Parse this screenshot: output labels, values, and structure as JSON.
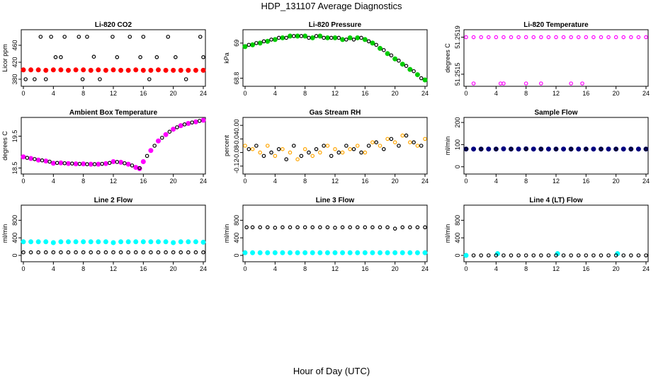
{
  "figure": {
    "title": "HDP_131107  Average Diagnostics",
    "xlabel": "Hour of Day (UTC)"
  },
  "colors": {
    "black": "#000000",
    "red": "#ff0000",
    "magenta": "#ff00ff",
    "green": "#00cc00",
    "orange": "#ffa500",
    "navy": "#000080",
    "cyan": "#00ffff"
  },
  "chart_data": [
    {
      "type": "scatter",
      "title": "Li-820 CO2",
      "ylabel": "Licor ppm",
      "xlim": [
        0,
        24
      ],
      "ylim": [
        370,
        490
      ],
      "xticks": [
        0,
        4,
        8,
        12,
        16,
        20,
        24
      ],
      "yticks": [
        380,
        420,
        460
      ],
      "series": [
        {
          "color": "#ff0000",
          "marker": "filled",
          "x": [
            0,
            1,
            2,
            3,
            4,
            5,
            6,
            7,
            8,
            9,
            10,
            11,
            12,
            13,
            14,
            15,
            16,
            17,
            18,
            19,
            20,
            21,
            22,
            23,
            24
          ],
          "y": [
            402,
            402,
            402,
            401,
            402,
            402,
            401,
            402,
            402,
            401,
            402,
            401,
            402,
            401,
            401,
            402,
            401,
            401,
            402,
            401,
            401,
            401,
            401,
            401,
            401
          ]
        },
        {
          "color": "#000000",
          "marker": "open",
          "x": [
            0.3,
            1.5,
            2.3,
            3.0,
            3.7,
            4.3,
            5.0,
            5.5,
            7.4,
            7.9,
            8.5,
            9.4,
            10.2,
            11.9,
            12.5,
            14.2,
            15.6,
            16.0,
            16.8,
            17.8,
            19.3,
            20.3,
            21.7,
            23.6,
            24.0
          ],
          "y": [
            380,
            380,
            480,
            380,
            480,
            432,
            432,
            480,
            480,
            380,
            480,
            433,
            380,
            480,
            432,
            480,
            432,
            480,
            380,
            432,
            480,
            432,
            380,
            480,
            432
          ]
        }
      ]
    },
    {
      "type": "scatter",
      "title": "Li-820 Pressure",
      "ylabel": "kPa",
      "xlim": [
        0,
        24
      ],
      "ylim": [
        68.77,
        69.06
      ],
      "xticks": [
        0,
        4,
        8,
        12,
        16,
        20,
        24
      ],
      "yticks": [
        68.8,
        69.0
      ],
      "series": [
        {
          "color": "#00cc00",
          "marker": "filled",
          "x": [
            0,
            1,
            2,
            3,
            4,
            5,
            6,
            7,
            8,
            9,
            10,
            11,
            12,
            13,
            14,
            15,
            16,
            17,
            18,
            19,
            20,
            21,
            22,
            23,
            24
          ],
          "y": [
            68.98,
            68.99,
            69.0,
            69.01,
            69.02,
            69.03,
            69.04,
            69.04,
            69.04,
            69.03,
            69.04,
            69.03,
            69.03,
            69.02,
            69.03,
            69.03,
            69.02,
            69.0,
            68.97,
            68.94,
            68.91,
            68.88,
            68.85,
            68.82,
            68.79
          ]
        },
        {
          "color": "#000000",
          "marker": "open",
          "x": [
            0.5,
            1.5,
            2.5,
            3.5,
            4.5,
            5.5,
            6.5,
            7.5,
            8.5,
            9.5,
            10.5,
            11.5,
            12.5,
            13.5,
            14.5,
            15.5,
            16.5,
            17.5,
            18.5,
            19.5,
            20.5,
            21.5,
            22.5,
            23.5
          ],
          "y": [
            68.99,
            69.0,
            69.01,
            69.02,
            69.03,
            69.03,
            69.04,
            69.04,
            69.03,
            69.04,
            69.03,
            69.03,
            69.03,
            69.02,
            69.02,
            69.03,
            69.01,
            68.99,
            68.96,
            68.93,
            68.9,
            68.87,
            68.84,
            68.8
          ]
        }
      ]
    },
    {
      "type": "scatter",
      "title": "Li-820 Temperature",
      "ylabel": "degrees C",
      "xlim": [
        0,
        24
      ],
      "ylim": [
        51.2514,
        51.25195
      ],
      "xticks": [
        0,
        4,
        8,
        12,
        16,
        20,
        24
      ],
      "yticks": [
        51.2515,
        51.2519
      ],
      "ytick_labels": [
        "51.2515",
        "51.2519"
      ],
      "series": [
        {
          "color": "#ff00ff",
          "marker": "open",
          "x": [
            1.0,
            4.6,
            5.0,
            8.0,
            10.0,
            14.0,
            15.5
          ],
          "y": [
            51.2514,
            51.2514,
            51.2514,
            51.2514,
            51.2514,
            51.2514,
            51.2514
          ]
        },
        {
          "color": "#ff00ff",
          "marker": "open",
          "x": [
            0,
            1,
            2,
            3,
            4,
            5,
            6,
            7,
            8,
            9,
            10,
            11,
            12,
            13,
            14,
            15,
            16,
            17,
            18,
            19,
            20,
            21,
            22,
            23,
            24
          ],
          "y": [
            51.2519,
            51.2519,
            51.2519,
            51.2519,
            51.2519,
            51.2519,
            51.2519,
            51.2519,
            51.2519,
            51.2519,
            51.2519,
            51.2519,
            51.2519,
            51.2519,
            51.2519,
            51.2519,
            51.2519,
            51.2519,
            51.2519,
            51.2519,
            51.2519,
            51.2519,
            51.2519,
            51.2519,
            51.2519
          ]
        }
      ]
    },
    {
      "type": "scatter",
      "title": "Ambient Box Temperature",
      "ylabel": "degrees C",
      "xlim": [
        0,
        24
      ],
      "ylim": [
        18.4,
        20.0
      ],
      "xticks": [
        0,
        4,
        8,
        12,
        16,
        20,
        24
      ],
      "yticks": [
        18.5,
        19.5
      ],
      "series": [
        {
          "color": "#ff00ff",
          "marker": "filled",
          "x": [
            0,
            1,
            2,
            3,
            4,
            5,
            6,
            7,
            8,
            9,
            10,
            11,
            12,
            13,
            14,
            15,
            15.5,
            16,
            17,
            18,
            19,
            20,
            21,
            22,
            23,
            24
          ],
          "y": [
            18.85,
            18.8,
            18.75,
            18.72,
            18.65,
            18.66,
            18.64,
            18.63,
            18.63,
            18.62,
            18.62,
            18.64,
            18.7,
            18.68,
            18.62,
            18.52,
            18.48,
            18.7,
            19.05,
            19.35,
            19.55,
            19.72,
            19.83,
            19.9,
            19.95,
            20.0
          ]
        },
        {
          "color": "#000000",
          "marker": "open",
          "x": [
            0.5,
            1.5,
            2.5,
            3.5,
            4.5,
            5.5,
            6.5,
            7.5,
            8.5,
            9.5,
            10.5,
            11.5,
            12.5,
            13.5,
            14.5,
            15.5,
            16.5,
            17.5,
            18.5,
            19.5,
            20.5,
            21.5,
            22.5,
            23.5
          ],
          "y": [
            18.82,
            18.78,
            18.74,
            18.7,
            18.66,
            18.65,
            18.64,
            18.63,
            18.62,
            18.62,
            18.63,
            18.66,
            18.69,
            18.65,
            18.58,
            18.5,
            18.88,
            19.2,
            19.45,
            19.64,
            19.78,
            19.87,
            19.93,
            19.98
          ]
        }
      ]
    },
    {
      "type": "scatter",
      "title": "Gas Stream RH",
      "ylabel": "percent",
      "xlim": [
        0,
        24
      ],
      "ylim": [
        -0.135,
        0.015
      ],
      "xticks": [
        0,
        4,
        8,
        12,
        16,
        20,
        24
      ],
      "yticks": [
        -0.12,
        -0.08,
        -0.04,
        0.0
      ],
      "ytick_labels": [
        "-0.12",
        "-0.08",
        "-0.04",
        "0.00"
      ],
      "series": [
        {
          "color": "#ffa500",
          "marker": "open",
          "x": [
            0,
            1,
            2,
            3,
            4,
            5,
            6,
            7,
            8,
            9,
            10,
            11,
            12,
            13,
            14,
            15,
            16,
            17,
            18,
            19,
            20,
            21,
            22,
            23,
            24
          ],
          "y": [
            -0.06,
            -0.07,
            -0.08,
            -0.06,
            -0.09,
            -0.07,
            -0.08,
            -0.1,
            -0.07,
            -0.09,
            -0.08,
            -0.06,
            -0.07,
            -0.08,
            -0.07,
            -0.06,
            -0.08,
            -0.05,
            -0.06,
            -0.04,
            -0.05,
            -0.03,
            -0.05,
            -0.06,
            -0.04
          ]
        },
        {
          "color": "#000000",
          "marker": "open",
          "x": [
            0.5,
            1.5,
            2.5,
            3.5,
            4.5,
            5.5,
            6.5,
            7.5,
            8.5,
            9.5,
            10.5,
            11.5,
            12.5,
            13.5,
            14.5,
            15.5,
            16.5,
            17.5,
            18.5,
            19.5,
            20.5,
            21.5,
            22.5,
            23.5
          ],
          "y": [
            -0.07,
            -0.06,
            -0.09,
            -0.08,
            -0.07,
            -0.1,
            -0.06,
            -0.09,
            -0.08,
            -0.07,
            -0.06,
            -0.09,
            -0.08,
            -0.06,
            -0.07,
            -0.08,
            -0.06,
            -0.05,
            -0.07,
            -0.04,
            -0.06,
            -0.03,
            -0.05,
            -0.06
          ]
        }
      ]
    },
    {
      "type": "scatter",
      "title": "Sample Flow",
      "ylabel": "ml/min",
      "xlim": [
        0,
        24
      ],
      "ylim": [
        -20,
        210
      ],
      "xticks": [
        0,
        4,
        8,
        12,
        16,
        20,
        24
      ],
      "yticks": [
        0,
        100,
        200
      ],
      "series": [
        {
          "color": "#000080",
          "marker": "filled",
          "x": [
            0,
            1,
            2,
            3,
            4,
            5,
            6,
            7,
            8,
            9,
            10,
            11,
            12,
            13,
            14,
            15,
            16,
            17,
            18,
            19,
            20,
            21,
            22,
            23,
            24
          ],
          "y": [
            80,
            80,
            80,
            80,
            80,
            81,
            80,
            80,
            81,
            80,
            80,
            80,
            80,
            80,
            80,
            80,
            80,
            80,
            80,
            80,
            80,
            80,
            80,
            80,
            80
          ]
        },
        {
          "color": "#000000",
          "marker": "open",
          "x": [
            0,
            2,
            4,
            6,
            8,
            10,
            12,
            14,
            16,
            18,
            20,
            22,
            24
          ],
          "y": [
            80,
            80,
            80,
            80,
            80,
            80,
            80,
            80,
            80,
            80,
            80,
            80,
            80
          ]
        }
      ]
    },
    {
      "type": "scatter",
      "title": "Line 2 Flow",
      "ylabel": "ml/min",
      "xlim": [
        0,
        24
      ],
      "ylim": [
        -80,
        1080
      ],
      "xticks": [
        0,
        4,
        8,
        12,
        16,
        20,
        24
      ],
      "yticks": [
        0,
        400,
        800
      ],
      "series": [
        {
          "color": "#00ffff",
          "marker": "filled",
          "x": [
            0,
            1,
            2,
            3,
            4,
            5,
            6,
            7,
            8,
            9,
            10,
            11,
            12,
            13,
            14,
            15,
            16,
            17,
            18,
            19,
            20,
            21,
            22,
            23,
            24
          ],
          "y": [
            310,
            310,
            310,
            310,
            290,
            310,
            310,
            310,
            310,
            310,
            310,
            310,
            290,
            310,
            310,
            310,
            310,
            310,
            310,
            310,
            290,
            310,
            310,
            310,
            300
          ]
        },
        {
          "color": "#000000",
          "marker": "open",
          "x": [
            0,
            1,
            2,
            3,
            4,
            5,
            6,
            7,
            8,
            9,
            10,
            11,
            12,
            13,
            14,
            15,
            16,
            17,
            18,
            19,
            20,
            21,
            22,
            23,
            24
          ],
          "y": [
            70,
            70,
            70,
            70,
            70,
            70,
            70,
            70,
            70,
            70,
            70,
            70,
            70,
            70,
            70,
            70,
            70,
            70,
            70,
            70,
            70,
            70,
            70,
            70,
            70
          ]
        }
      ]
    },
    {
      "type": "scatter",
      "title": "Line 3 Flow",
      "ylabel": "ml/min",
      "xlim": [
        0,
        24
      ],
      "ylim": [
        -80,
        1080
      ],
      "xticks": [
        0,
        4,
        8,
        12,
        16,
        20,
        24
      ],
      "yticks": [
        0,
        400,
        800
      ],
      "series": [
        {
          "color": "#00ffff",
          "marker": "filled",
          "x": [
            0,
            1,
            2,
            3,
            4,
            5,
            6,
            7,
            8,
            9,
            10,
            11,
            12,
            13,
            14,
            15,
            16,
            17,
            18,
            19,
            20,
            21,
            22,
            23,
            24
          ],
          "y": [
            60,
            60,
            60,
            60,
            60,
            60,
            60,
            60,
            60,
            60,
            60,
            60,
            60,
            60,
            60,
            60,
            60,
            60,
            60,
            60,
            60,
            60,
            60,
            60,
            60
          ]
        },
        {
          "color": "#000000",
          "marker": "open",
          "x": [
            0.2,
            1,
            2,
            3,
            4,
            5,
            6,
            7,
            8,
            9,
            10,
            11,
            12,
            13,
            14,
            15,
            16,
            17,
            18,
            19,
            20,
            21,
            22,
            23,
            24
          ],
          "y": [
            640,
            640,
            640,
            640,
            630,
            640,
            640,
            640,
            640,
            640,
            640,
            640,
            630,
            640,
            640,
            640,
            640,
            640,
            640,
            640,
            610,
            640,
            640,
            640,
            640
          ]
        }
      ]
    },
    {
      "type": "scatter",
      "title": "Line 4 (LT) Flow",
      "ylabel": "ml/min",
      "xlim": [
        0,
        24
      ],
      "ylim": [
        -80,
        1080
      ],
      "xticks": [
        0,
        4,
        8,
        12,
        16,
        20,
        24
      ],
      "yticks": [
        0,
        400,
        800
      ],
      "series": [
        {
          "color": "#00ffff",
          "marker": "filled",
          "x": [
            0,
            4.2,
            12.2,
            20.2
          ],
          "y": [
            0,
            40,
            40,
            40
          ]
        },
        {
          "color": "#000000",
          "marker": "open",
          "x": [
            1,
            2,
            3,
            4,
            5,
            6,
            7,
            8,
            9,
            10,
            11,
            12,
            13,
            14,
            15,
            16,
            17,
            18,
            19,
            20,
            21,
            22,
            23,
            24
          ],
          "y": [
            0,
            0,
            0,
            0,
            0,
            0,
            0,
            0,
            0,
            0,
            0,
            0,
            0,
            0,
            0,
            0,
            0,
            0,
            0,
            0,
            0,
            0,
            0,
            0
          ]
        }
      ]
    }
  ]
}
